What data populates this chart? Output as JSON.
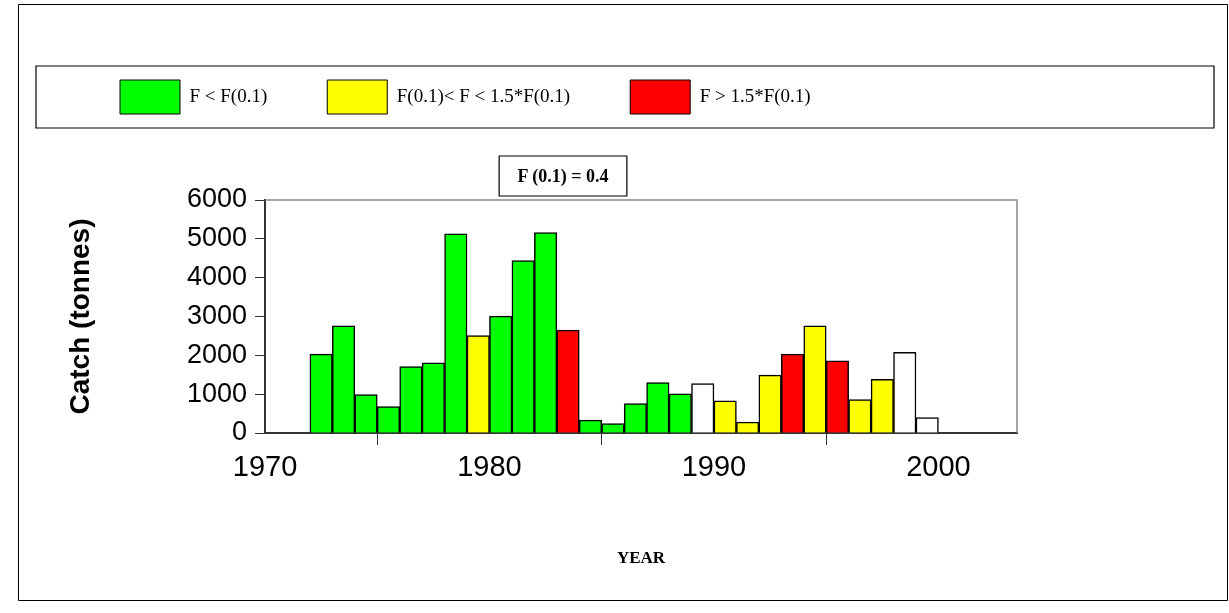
{
  "chart_data": {
    "type": "bar",
    "title": null,
    "x": [
      1972.5,
      1973.5,
      1974.5,
      1975.5,
      1976.5,
      1977.5,
      1978.5,
      1979.5,
      1980.5,
      1981.5,
      1982.5,
      1983.5,
      1984.5,
      1985.5,
      1986.5,
      1987.5,
      1988.5,
      1989.5,
      1990.5,
      1991.5,
      1992.5,
      1993.5,
      1994.5,
      1995.5,
      1996.5,
      1997.5,
      1998.5,
      1999.5
    ],
    "series": [
      {
        "name": "F < F(0.1)",
        "color": "#00ff00",
        "values": [
          2030,
          2760,
          990,
          680,
          1710,
          1810,
          5130,
          null,
          3010,
          4440,
          5160,
          null,
          330,
          240,
          760,
          1300,
          1010,
          null,
          null,
          null,
          null,
          null,
          null,
          null,
          null,
          null,
          null,
          null
        ]
      },
      {
        "name": "F(0.1)< F < 1.5*F(0.1)",
        "color": "#ffff00",
        "values": [
          null,
          null,
          null,
          null,
          null,
          null,
          null,
          2510,
          null,
          null,
          null,
          null,
          null,
          null,
          null,
          null,
          null,
          null,
          830,
          280,
          1490,
          null,
          2760,
          null,
          860,
          1380,
          null,
          null
        ]
      },
      {
        "name": "F > 1.5*F(0.1)",
        "color": "#ff0000",
        "values": [
          null,
          null,
          null,
          null,
          null,
          null,
          null,
          null,
          null,
          null,
          null,
          2650,
          null,
          null,
          null,
          null,
          null,
          null,
          null,
          null,
          null,
          2030,
          null,
          1860,
          null,
          null,
          null,
          null
        ]
      },
      {
        "color": "#ffffff",
        "values": [
          null,
          null,
          null,
          null,
          null,
          null,
          null,
          null,
          null,
          null,
          null,
          null,
          null,
          null,
          null,
          null,
          null,
          1270,
          null,
          null,
          null,
          null,
          null,
          null,
          null,
          null,
          2080,
          400
        ]
      }
    ],
    "xlim": [
      1970,
      2003.5
    ],
    "xticks": [
      1970,
      1980,
      1990,
      2000
    ],
    "ylim": [
      0,
      6000
    ],
    "yticks": [
      0,
      1000,
      2000,
      3000,
      4000,
      5000,
      6000
    ],
    "xlabel": "YEAR",
    "ylabel": "Catch (tonnes)",
    "legend": "top",
    "grid": false,
    "annotations": [
      "F (0.1) = 0.4"
    ]
  }
}
